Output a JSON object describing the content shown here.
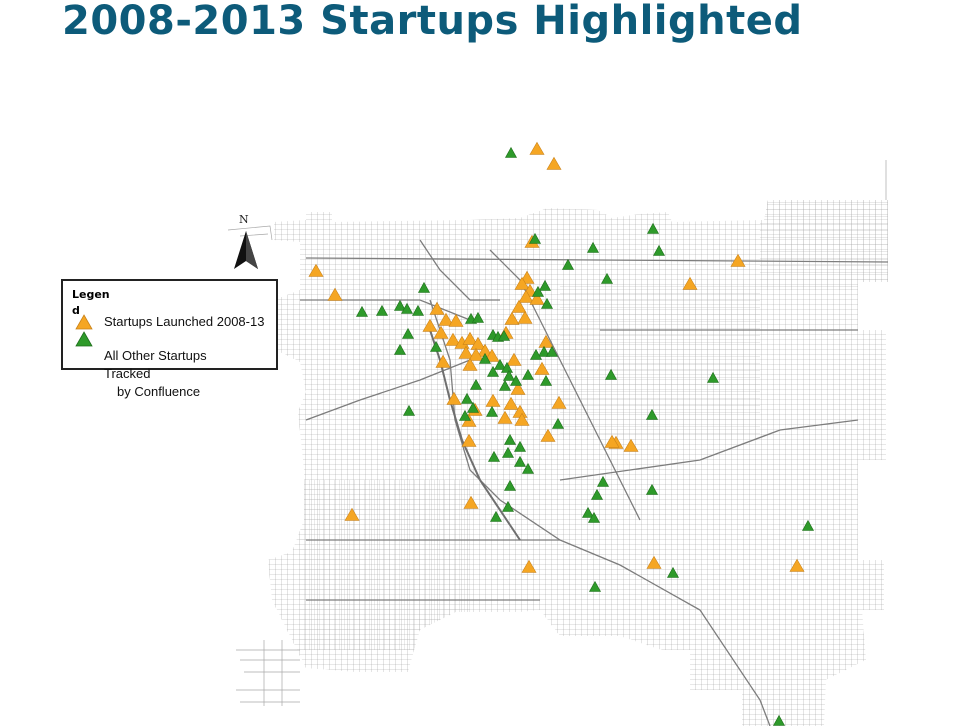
{
  "title": "2008-2013 Startups Highlighted",
  "north_label": "N",
  "legend": {
    "title": "Legend",
    "items": [
      {
        "label": "Startups Launched 2008-13",
        "color": "#f5a623",
        "icon": "orange-triangle-icon"
      },
      {
        "label": "All Other Startups Tracked",
        "label_line2": "by Confluence",
        "color": "#2e9a2a",
        "icon": "green-triangle-icon"
      }
    ]
  },
  "colors": {
    "title": "#0d5b7a",
    "streets": "#9a9a9a",
    "launched": "#f5a623",
    "other": "#2e9a2a"
  },
  "markers": {
    "launched_2008_13": [
      [
        537,
        149
      ],
      [
        554,
        164
      ],
      [
        532,
        242
      ],
      [
        738,
        261
      ],
      [
        316,
        271
      ],
      [
        690,
        284
      ],
      [
        335,
        295
      ],
      [
        527,
        278
      ],
      [
        522,
        284
      ],
      [
        530,
        291
      ],
      [
        526,
        297
      ],
      [
        537,
        299
      ],
      [
        519,
        307
      ],
      [
        512,
        319
      ],
      [
        525,
        318
      ],
      [
        506,
        333
      ],
      [
        437,
        309
      ],
      [
        446,
        320
      ],
      [
        430,
        326
      ],
      [
        441,
        333
      ],
      [
        456,
        321
      ],
      [
        453,
        340
      ],
      [
        462,
        343
      ],
      [
        470,
        339
      ],
      [
        478,
        344
      ],
      [
        485,
        351
      ],
      [
        466,
        353
      ],
      [
        476,
        355
      ],
      [
        492,
        356
      ],
      [
        470,
        365
      ],
      [
        443,
        362
      ],
      [
        514,
        360
      ],
      [
        546,
        342
      ],
      [
        542,
        369
      ],
      [
        518,
        389
      ],
      [
        454,
        399
      ],
      [
        493,
        401
      ],
      [
        475,
        410
      ],
      [
        511,
        404
      ],
      [
        520,
        412
      ],
      [
        505,
        418
      ],
      [
        469,
        421
      ],
      [
        522,
        420
      ],
      [
        559,
        403
      ],
      [
        548,
        436
      ],
      [
        469,
        441
      ],
      [
        616,
        443
      ],
      [
        631,
        446
      ],
      [
        612,
        442
      ],
      [
        352,
        515
      ],
      [
        471,
        503
      ],
      [
        529,
        567
      ],
      [
        654,
        563
      ],
      [
        797,
        566
      ]
    ],
    "all_other": [
      [
        511,
        153
      ],
      [
        535,
        239
      ],
      [
        653,
        229
      ],
      [
        593,
        248
      ],
      [
        568,
        265
      ],
      [
        659,
        251
      ],
      [
        607,
        279
      ],
      [
        545,
        286
      ],
      [
        538,
        292
      ],
      [
        547,
        304
      ],
      [
        424,
        288
      ],
      [
        362,
        312
      ],
      [
        382,
        311
      ],
      [
        400,
        306
      ],
      [
        407,
        309
      ],
      [
        418,
        311
      ],
      [
        471,
        319
      ],
      [
        478,
        318
      ],
      [
        408,
        334
      ],
      [
        400,
        350
      ],
      [
        493,
        335
      ],
      [
        498,
        337
      ],
      [
        504,
        336
      ],
      [
        436,
        347
      ],
      [
        544,
        352
      ],
      [
        552,
        352
      ],
      [
        536,
        355
      ],
      [
        485,
        359
      ],
      [
        500,
        365
      ],
      [
        507,
        368
      ],
      [
        493,
        372
      ],
      [
        509,
        376
      ],
      [
        528,
        375
      ],
      [
        546,
        381
      ],
      [
        516,
        381
      ],
      [
        476,
        385
      ],
      [
        505,
        386
      ],
      [
        611,
        375
      ],
      [
        713,
        378
      ],
      [
        409,
        411
      ],
      [
        465,
        416
      ],
      [
        467,
        399
      ],
      [
        492,
        412
      ],
      [
        473,
        408
      ],
      [
        558,
        424
      ],
      [
        652,
        415
      ],
      [
        510,
        440
      ],
      [
        520,
        447
      ],
      [
        494,
        457
      ],
      [
        508,
        453
      ],
      [
        520,
        462
      ],
      [
        528,
        469
      ],
      [
        510,
        486
      ],
      [
        603,
        482
      ],
      [
        597,
        495
      ],
      [
        652,
        490
      ],
      [
        508,
        507
      ],
      [
        496,
        517
      ],
      [
        588,
        513
      ],
      [
        594,
        518
      ],
      [
        808,
        526
      ],
      [
        673,
        573
      ],
      [
        595,
        587
      ],
      [
        779,
        721
      ]
    ]
  }
}
